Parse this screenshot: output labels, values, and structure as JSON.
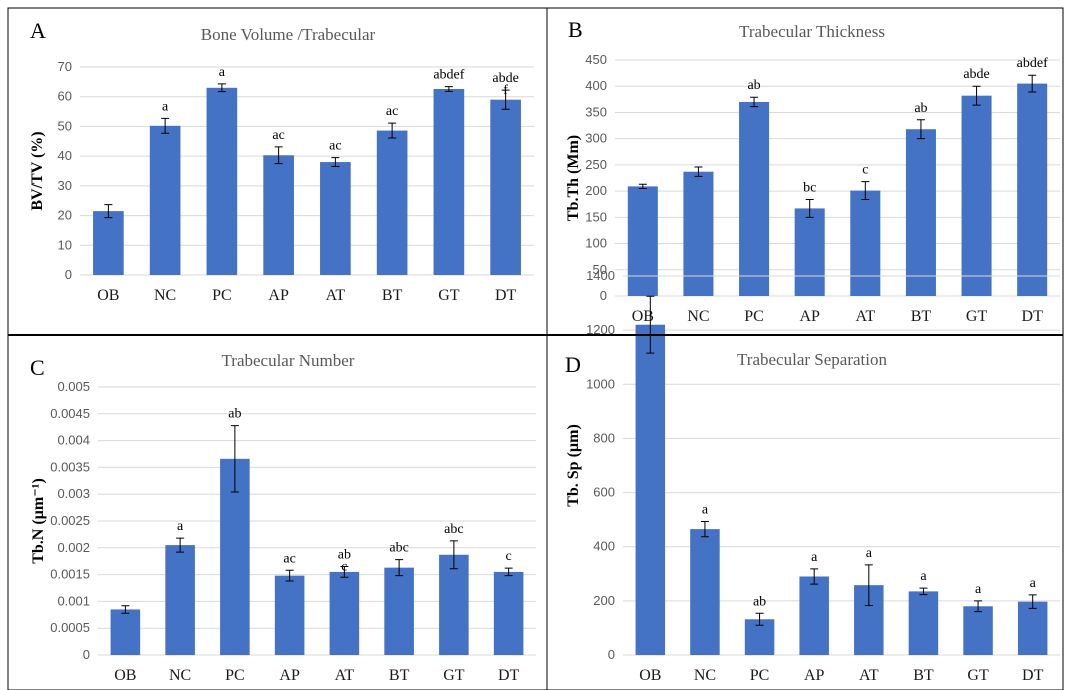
{
  "colors": {
    "bar": "#4472C4",
    "grid": "#D9D9D9",
    "border": "#000000"
  },
  "chart_data": [
    {
      "panel": "A",
      "type": "bar",
      "title": "Bone Volume /Trabecular",
      "ylabel": "BV/TV (%)",
      "ylim": [
        0,
        70
      ],
      "yticks": [
        "0",
        "10",
        "20",
        "30",
        "40",
        "50",
        "60",
        "70"
      ],
      "categories": [
        "OB",
        "NC",
        "PC",
        "AP",
        "AT",
        "BT",
        "GT",
        "DT"
      ],
      "values": [
        21.5,
        50.2,
        63.0,
        40.3,
        38.0,
        48.6,
        62.6,
        59.0
      ],
      "errors": [
        2.2,
        2.5,
        1.3,
        2.8,
        1.5,
        2.5,
        0.8,
        3.2
      ],
      "annotations": [
        "",
        "a",
        "a",
        "ac",
        "ac",
        "ac",
        "abdef",
        "abde\nf"
      ],
      "grid": true
    },
    {
      "panel": "B",
      "type": "bar",
      "title": "Trabecular  Thickness",
      "ylabel": "Tb.Th (Mm)",
      "ylim": [
        0,
        450
      ],
      "yticks": [
        "0",
        "50",
        "100",
        "150",
        "200",
        "250",
        "300",
        "350",
        "400",
        "450"
      ],
      "categories": [
        "OB",
        "NC",
        "PC",
        "AP",
        "AT",
        "BT",
        "GT",
        "DT"
      ],
      "values": [
        209,
        237,
        370,
        167,
        201,
        318,
        382,
        405
      ],
      "errors": [
        4,
        9,
        9,
        17,
        17,
        18,
        18,
        16
      ],
      "annotations": [
        "",
        "",
        "ab",
        "bc",
        "c",
        "ab",
        "abde",
        "abdef"
      ],
      "grid": true
    },
    {
      "panel": "C",
      "type": "bar",
      "title": "Trabecular  Number",
      "ylabel": "Tb.N (µm⁻¹)",
      "ylim": [
        0,
        0.005
      ],
      "yticks": [
        "0",
        "0.0005",
        "0.001",
        "0.0015",
        "0.002",
        "0.0025",
        "0.003",
        "0.0035",
        "0.004",
        "0.0045",
        "0.005"
      ],
      "categories": [
        "OB",
        "NC",
        "PC",
        "AP",
        "AT",
        "BT",
        "GT",
        "DT"
      ],
      "values": [
        0.00085,
        0.00205,
        0.00366,
        0.00148,
        0.00155,
        0.00163,
        0.00187,
        0.00155
      ],
      "errors": [
        7e-05,
        0.00013,
        0.00062,
        0.0001,
        0.0001,
        0.00015,
        0.00026,
        7e-05
      ],
      "annotations": [
        "",
        "a",
        "ab",
        "ac",
        "ab\nc",
        "abc",
        "abc",
        "c"
      ],
      "grid": true
    },
    {
      "panel": "D",
      "type": "bar",
      "title": "Trabecular  Separation",
      "ylabel": "Tb. Sp (µm)",
      "ylim": [
        0,
        1400
      ],
      "yticks": [
        "0",
        "200",
        "400",
        "600",
        "800",
        "1000",
        "1200",
        "1400"
      ],
      "categories": [
        "OB",
        "NC",
        "PC",
        "AP",
        "AT",
        "BT",
        "GT",
        "DT"
      ],
      "values": [
        1220,
        465,
        132,
        290,
        258,
        235,
        180,
        197
      ],
      "errors": [
        105,
        28,
        22,
        28,
        75,
        12,
        20,
        25
      ],
      "annotations": [
        "",
        "a",
        "ab",
        "a",
        "a",
        "a",
        "a",
        "a"
      ],
      "grid": true
    }
  ]
}
